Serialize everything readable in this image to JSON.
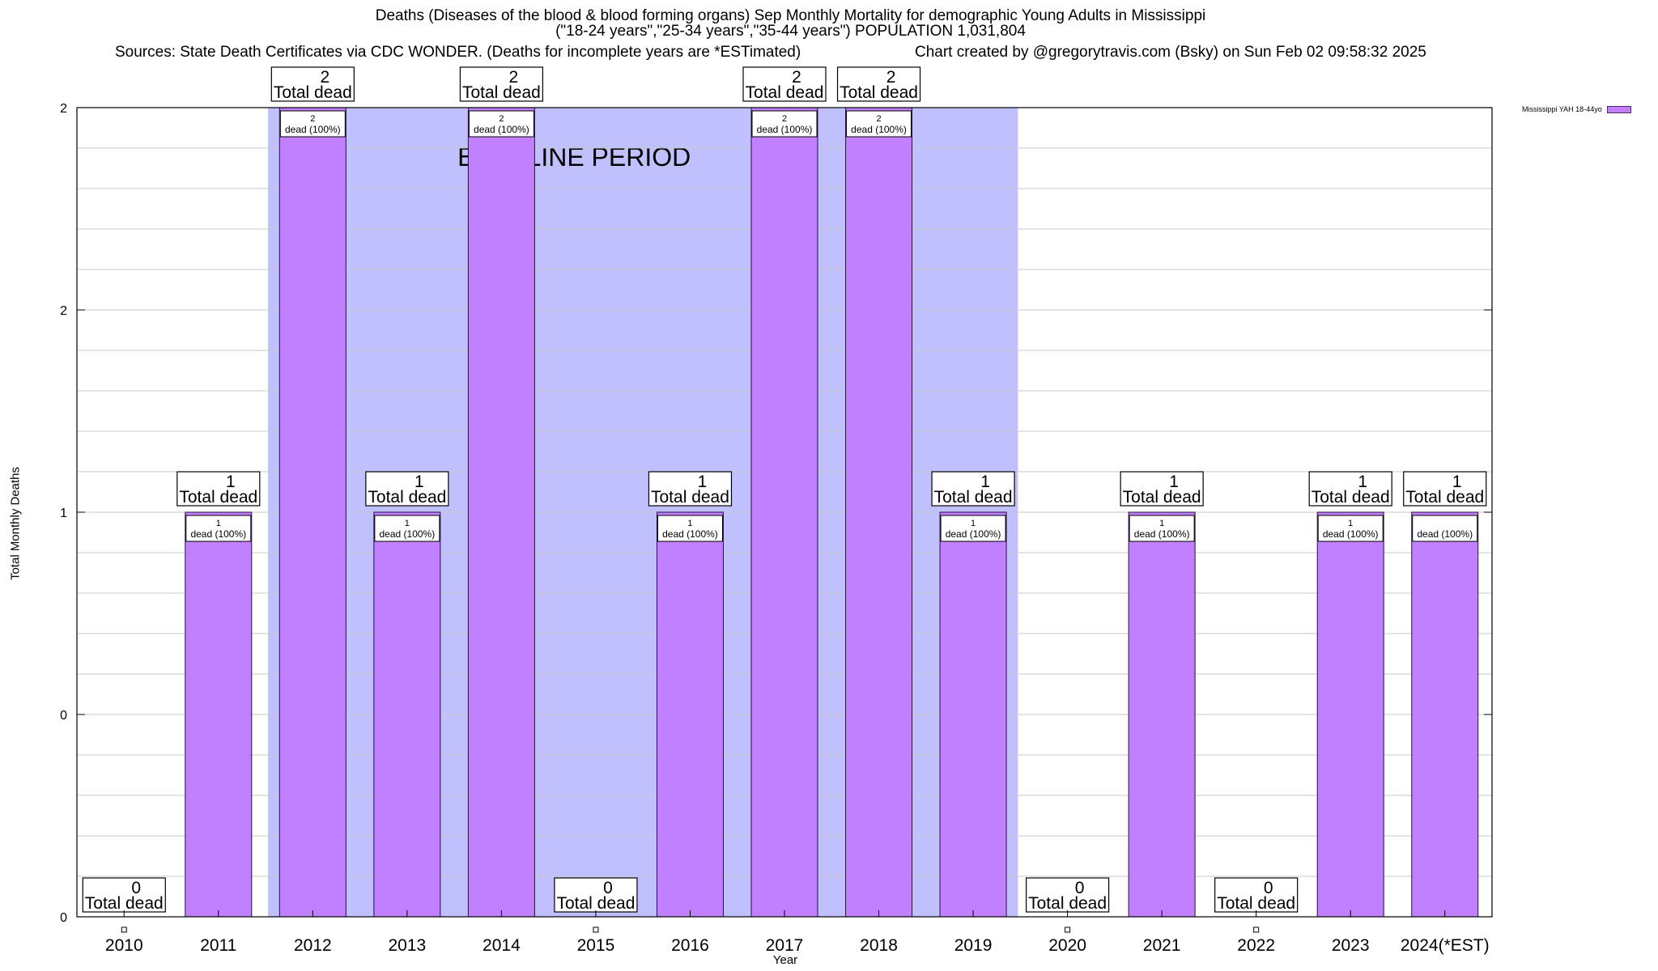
{
  "chart_data": {
    "type": "bar",
    "title_lines": [
      "Deaths (Diseases of the blood & blood forming organs) Sep Monthly Mortality for demographic Young Adults in Mississippi",
      "(\"18-24 years\",\"25-34 years\",\"35-44 years\") POPULATION 1,031,804"
    ],
    "sources": "Sources: State Death Certificates via CDC WONDER. (Deaths for incomplete years are *ESTimated)",
    "credit": "Chart created by @gregorytravis.com (Bsky) on Sun Feb 02 09:58:32 2025",
    "xlabel": "Year",
    "ylabel": "Total Monthly Deaths",
    "categories": [
      "2010",
      "2011",
      "2012",
      "2013",
      "2014",
      "2015",
      "2016",
      "2017",
      "2018",
      "2019",
      "2020",
      "2021",
      "2022",
      "2023",
      "2024(*EST)"
    ],
    "series": [
      {
        "name": "Mississippi YAH 18-44yo",
        "color": "#c080ff",
        "values": [
          0,
          1,
          2,
          1,
          2,
          0,
          1,
          2,
          2,
          1,
          0,
          1,
          0,
          1,
          1
        ]
      }
    ],
    "total_labels": {
      "count": [
        "0",
        "1",
        "2",
        "1",
        "2",
        "0",
        "1",
        "2",
        "2",
        "1",
        "0",
        "1",
        "0",
        "1",
        "1"
      ],
      "caption": "Total dead"
    },
    "inner_labels": {
      "count": [
        "1",
        "2",
        "1",
        "2",
        "1",
        "2",
        "2",
        "1",
        "1",
        "1"
      ],
      "caption": "dead (100%)"
    },
    "ylim": [
      0,
      2
    ],
    "y_tick_labels": [
      "0",
      "0",
      "1",
      "2",
      "2"
    ],
    "baseline": {
      "label": "BASELINE PERIOD",
      "from": "2012",
      "to": "2019",
      "color": "#c0c0ff"
    },
    "grid": true,
    "legend_position": "top-right"
  }
}
